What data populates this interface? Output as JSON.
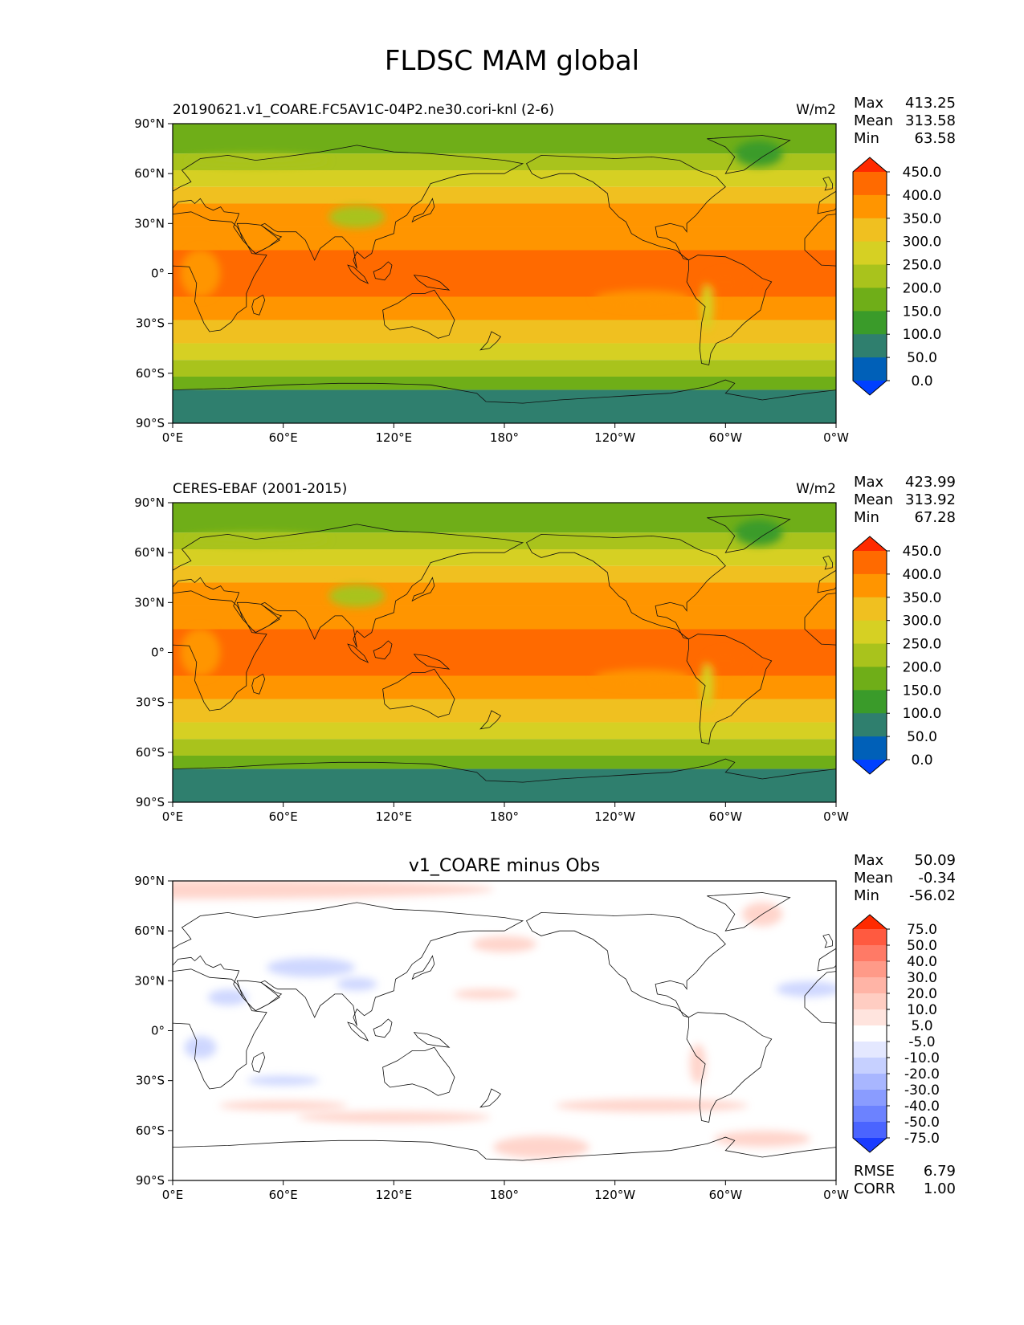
{
  "title": "FLDSC MAM global",
  "colors": {
    "land_edge": "#111111",
    "frame": "#000000"
  },
  "lon_ticks": [
    "0°E",
    "60°E",
    "120°E",
    "180°",
    "120°W",
    "60°W",
    "0°W"
  ],
  "lat_ticks": [
    "90°N",
    "60°N",
    "30°N",
    "0°",
    "30°S",
    "60°S",
    "90°S"
  ],
  "panels": [
    {
      "id": "test",
      "left_title": "20190621.v1_COARE.FC5AV1C-04P2.ne30.cori-knl (2-6)",
      "center_title": "",
      "units": "W/m2",
      "stats": [
        {
          "label": "Max",
          "value": "413.25"
        },
        {
          "label": "Mean",
          "value": "313.58"
        },
        {
          "label": "Min",
          "value": "63.58"
        }
      ],
      "colorbar_levels": [
        "450.0",
        "400.0",
        "350.0",
        "300.0",
        "250.0",
        "200.0",
        "150.0",
        "100.0",
        "50.0",
        "0.0"
      ],
      "colorbar_colors": [
        "#ff2a00",
        "#ff6a00",
        "#ff9500",
        "#f0c020",
        "#d6d023",
        "#a9c31c",
        "#6fae18",
        "#3a9b2a",
        "#2f7f6e",
        "#0060b8",
        "#0040ff"
      ],
      "extra_stats": []
    },
    {
      "id": "obs",
      "left_title": "CERES-EBAF (2001-2015)",
      "center_title": "",
      "units": "W/m2",
      "stats": [
        {
          "label": "Max",
          "value": "423.99"
        },
        {
          "label": "Mean",
          "value": "313.92"
        },
        {
          "label": "Min",
          "value": "67.28"
        }
      ],
      "colorbar_levels": [
        "450.0",
        "400.0",
        "350.0",
        "300.0",
        "250.0",
        "200.0",
        "150.0",
        "100.0",
        "50.0",
        "0.0"
      ],
      "colorbar_colors": [
        "#ff2a00",
        "#ff6a00",
        "#ff9500",
        "#f0c020",
        "#d6d023",
        "#a9c31c",
        "#6fae18",
        "#3a9b2a",
        "#2f7f6e",
        "#0060b8",
        "#0040ff"
      ],
      "extra_stats": []
    },
    {
      "id": "diff",
      "left_title": "",
      "center_title": "v1_COARE minus Obs",
      "units": "",
      "stats": [
        {
          "label": "Max",
          "value": "50.09"
        },
        {
          "label": "Mean",
          "value": "-0.34"
        },
        {
          "label": "Min",
          "value": "-56.02"
        }
      ],
      "colorbar_levels": [
        "75.0",
        "50.0",
        "40.0",
        "30.0",
        "20.0",
        "10.0",
        "5.0",
        "-5.0",
        "-10.0",
        "-20.0",
        "-30.0",
        "-40.0",
        "-50.0",
        "-75.0"
      ],
      "colorbar_colors": [
        "#ff2a00",
        "#ff5a40",
        "#ff7a66",
        "#ff9a88",
        "#ffb4a6",
        "#ffcdc2",
        "#ffe4de",
        "#ffffff",
        "#e4e8ff",
        "#c6d0ff",
        "#a8b6ff",
        "#8a9cff",
        "#6c82ff",
        "#4a64ff",
        "#1a3cff"
      ],
      "extra_stats": [
        {
          "label": "RMSE",
          "value": "6.79"
        },
        {
          "label": "CORR",
          "value": "1.00"
        }
      ]
    }
  ]
}
